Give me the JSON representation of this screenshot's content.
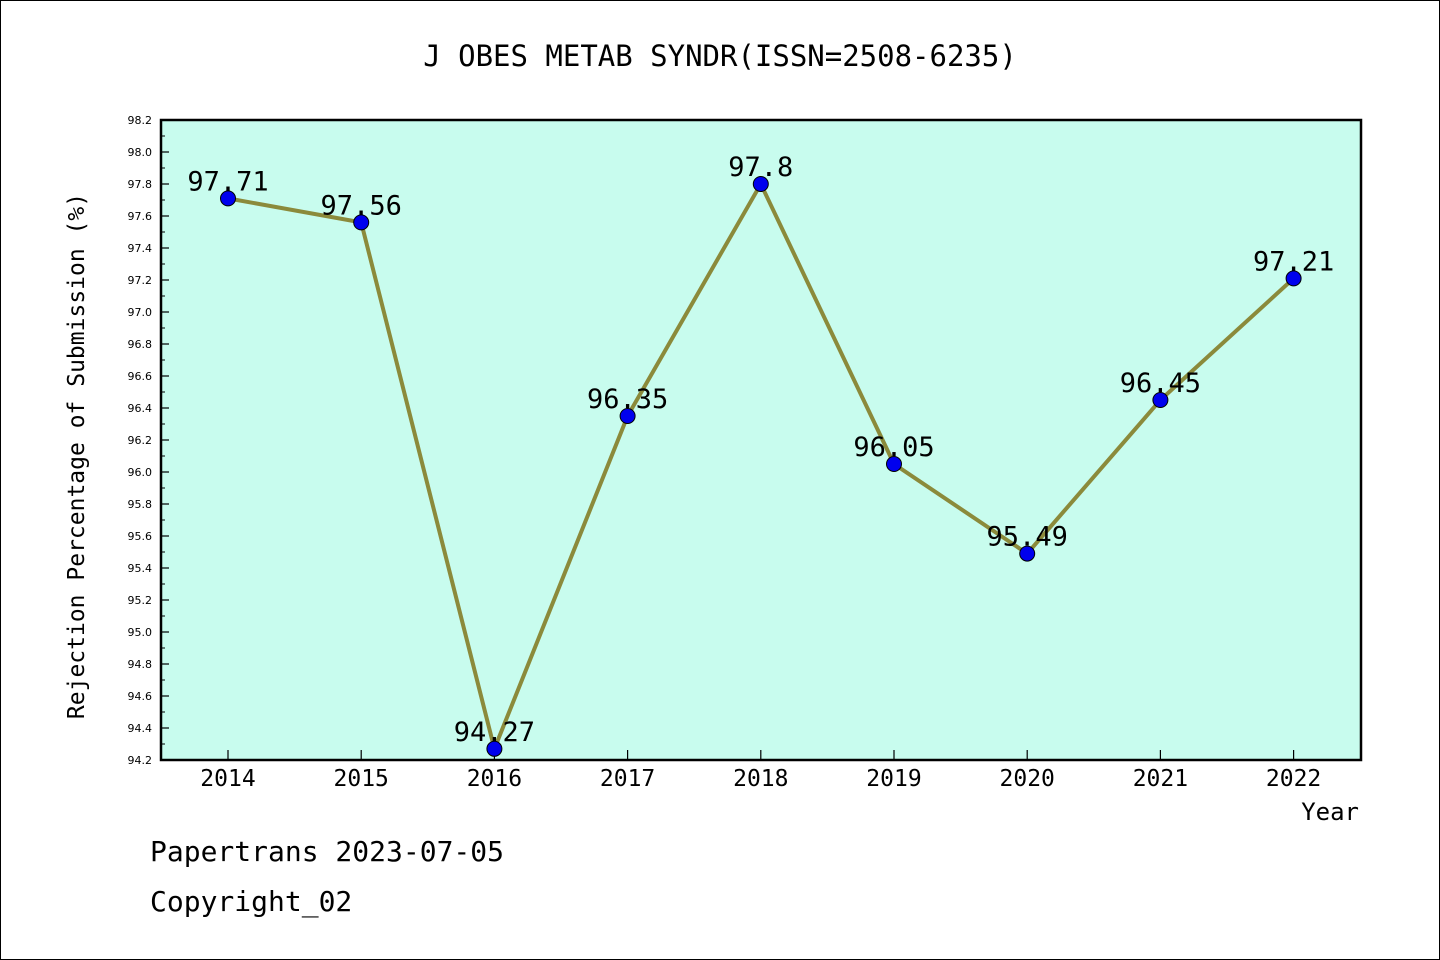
{
  "chart_data": {
    "type": "line",
    "title": "J OBES METAB SYNDR(ISSN=2508-6235)",
    "xlabel": "Year",
    "ylabel": "Rejection Percentage of Submission (%)",
    "categories": [
      "2014",
      "2015",
      "2016",
      "2017",
      "2018",
      "2019",
      "2020",
      "2021",
      "2022"
    ],
    "series": [
      {
        "values": [
          97.71,
          97.56,
          94.27,
          96.35,
          97.8,
          96.05,
          95.49,
          96.45,
          97.21
        ],
        "labels": [
          "97.71",
          "97.56",
          "94.27",
          "96.35",
          "97.8",
          "96.05",
          "95.49",
          "96.45",
          "97.21"
        ],
        "line_color": "#8b8a3b",
        "marker_color": "#0000ee"
      }
    ],
    "ylim": [
      94.2,
      98.2
    ],
    "yticks": [
      "94.2",
      "94.4",
      "94.6",
      "94.8",
      "95.0",
      "95.2",
      "95.4",
      "95.6",
      "95.8",
      "96.0",
      "96.2",
      "96.4",
      "96.6",
      "96.8",
      "97.0",
      "97.2",
      "97.4",
      "97.6",
      "97.8",
      "98.0",
      "98.2"
    ],
    "plot_background": "#c8fcee",
    "grid": false,
    "legend": "none"
  },
  "footer": {
    "line1": "Papertrans 2023-07-05",
    "line2": "Copyright_02"
  }
}
